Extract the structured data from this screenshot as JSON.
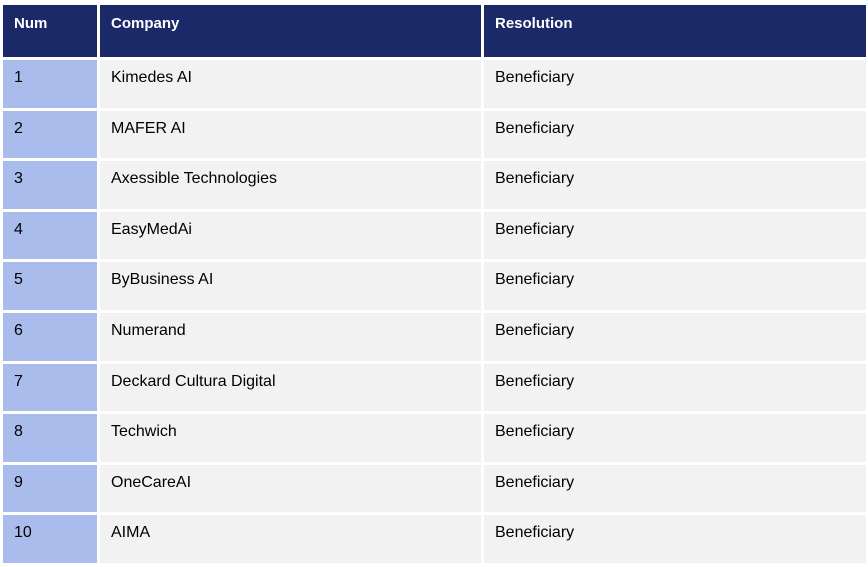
{
  "table": {
    "columns": [
      {
        "key": "num",
        "label": "Num"
      },
      {
        "key": "company",
        "label": "Company"
      },
      {
        "key": "resolution",
        "label": "Resolution"
      }
    ],
    "rows": [
      {
        "num": "1",
        "company": "Kimedes AI",
        "resolution": "Beneficiary"
      },
      {
        "num": "2",
        "company": "MAFER AI",
        "resolution": "Beneficiary"
      },
      {
        "num": "3",
        "company": "Axessible Technologies",
        "resolution": "Beneficiary"
      },
      {
        "num": "4",
        "company": "EasyMedAi",
        "resolution": "Beneficiary"
      },
      {
        "num": "5",
        "company": "ByBusiness AI",
        "resolution": "Beneficiary"
      },
      {
        "num": "6",
        "company": "Numerand",
        "resolution": "Beneficiary"
      },
      {
        "num": "7",
        "company": "Deckard Cultura Digital",
        "resolution": "Beneficiary"
      },
      {
        "num": "8",
        "company": "Techwich",
        "resolution": "Beneficiary"
      },
      {
        "num": "9",
        "company": "OneCareAI",
        "resolution": "Beneficiary"
      },
      {
        "num": "10",
        "company": "AIMA",
        "resolution": "Beneficiary"
      }
    ]
  },
  "colors": {
    "header_bg": "#1b2969",
    "header_text": "#ffffff",
    "num_bg": "#aabceb",
    "row_bg": "#f2f2f2",
    "body_text": "#000000",
    "page_bg": "#ffffff"
  }
}
